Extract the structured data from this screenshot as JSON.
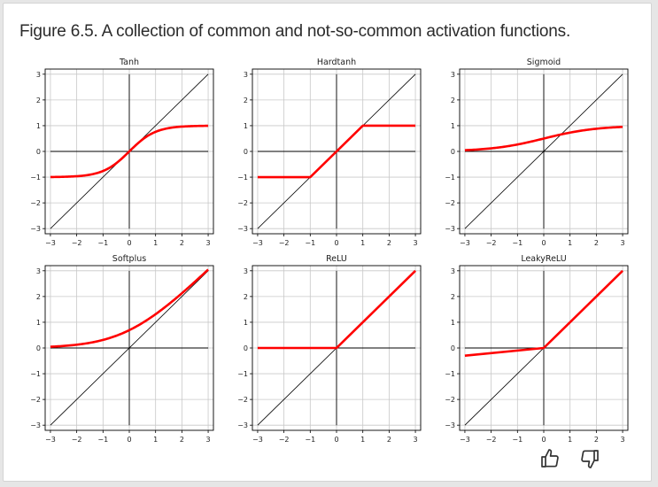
{
  "caption": "Figure 6.5. A collection of common and not-so-common activation functions.",
  "chart_data": [
    {
      "type": "line",
      "title": "Tanh",
      "function": "tanh",
      "xlim": [
        -3.2,
        3.2
      ],
      "ylim": [
        -3.2,
        3.2
      ],
      "xticks": [
        -3,
        -2,
        -1,
        0,
        1,
        2,
        3
      ],
      "yticks": [
        -3,
        -2,
        -1,
        0,
        1,
        2,
        3
      ],
      "xtick_labels": [
        "−3",
        "−2",
        "−1",
        "0",
        "1",
        "2",
        "3"
      ],
      "ytick_labels": [
        "−3",
        "−2",
        "−1",
        "0",
        "1",
        "2",
        "3"
      ],
      "series": [
        {
          "name": "identity",
          "color": "#000000",
          "x": [
            -3,
            3
          ],
          "y": [
            -3,
            3
          ]
        },
        {
          "name": "Tanh",
          "color": "#ff0000",
          "x": [
            -3,
            3
          ],
          "samples": 121
        }
      ]
    },
    {
      "type": "line",
      "title": "Hardtanh",
      "function": "hardtanh",
      "xlim": [
        -3.2,
        3.2
      ],
      "ylim": [
        -3.2,
        3.2
      ],
      "xticks": [
        -3,
        -2,
        -1,
        0,
        1,
        2,
        3
      ],
      "yticks": [
        -3,
        -2,
        -1,
        0,
        1,
        2,
        3
      ],
      "xtick_labels": [
        "−3",
        "−2",
        "−1",
        "0",
        "1",
        "2",
        "3"
      ],
      "ytick_labels": [
        "−3",
        "−2",
        "−1",
        "0",
        "1",
        "2",
        "3"
      ],
      "series": [
        {
          "name": "identity",
          "color": "#000000",
          "x": [
            -3,
            3
          ],
          "y": [
            -3,
            3
          ]
        },
        {
          "name": "Hardtanh",
          "color": "#ff0000",
          "x": [
            -3,
            -1,
            1,
            3
          ],
          "y": [
            -1,
            -1,
            1,
            1
          ]
        }
      ]
    },
    {
      "type": "line",
      "title": "Sigmoid",
      "function": "sigmoid",
      "xlim": [
        -3.2,
        3.2
      ],
      "ylim": [
        -3.2,
        3.2
      ],
      "xticks": [
        -3,
        -2,
        -1,
        0,
        1,
        2,
        3
      ],
      "yticks": [
        -3,
        -2,
        -1,
        0,
        1,
        2,
        3
      ],
      "xtick_labels": [
        "−3",
        "−2",
        "−1",
        "0",
        "1",
        "2",
        "3"
      ],
      "ytick_labels": [
        "−3",
        "−2",
        "−1",
        "0",
        "1",
        "2",
        "3"
      ],
      "series": [
        {
          "name": "identity",
          "color": "#000000",
          "x": [
            -3,
            3
          ],
          "y": [
            -3,
            3
          ]
        },
        {
          "name": "Sigmoid",
          "color": "#ff0000",
          "x": [
            -3,
            3
          ],
          "samples": 121
        }
      ]
    },
    {
      "type": "line",
      "title": "Softplus",
      "function": "softplus",
      "xlim": [
        -3.2,
        3.2
      ],
      "ylim": [
        -3.2,
        3.2
      ],
      "xticks": [
        -3,
        -2,
        -1,
        0,
        1,
        2,
        3
      ],
      "yticks": [
        -3,
        -2,
        -1,
        0,
        1,
        2,
        3
      ],
      "xtick_labels": [
        "−3",
        "−2",
        "−1",
        "0",
        "1",
        "2",
        "3"
      ],
      "ytick_labels": [
        "−3",
        "−2",
        "−1",
        "0",
        "1",
        "2",
        "3"
      ],
      "series": [
        {
          "name": "identity",
          "color": "#000000",
          "x": [
            -3,
            3
          ],
          "y": [
            -3,
            3
          ]
        },
        {
          "name": "Softplus",
          "color": "#ff0000",
          "x": [
            -3,
            3
          ],
          "samples": 121
        }
      ]
    },
    {
      "type": "line",
      "title": "ReLU",
      "function": "relu",
      "xlim": [
        -3.2,
        3.2
      ],
      "ylim": [
        -3.2,
        3.2
      ],
      "xticks": [
        -3,
        -2,
        -1,
        0,
        1,
        2,
        3
      ],
      "yticks": [
        -3,
        -2,
        -1,
        0,
        1,
        2,
        3
      ],
      "xtick_labels": [
        "−3",
        "−2",
        "−1",
        "0",
        "1",
        "2",
        "3"
      ],
      "ytick_labels": [
        "−3",
        "−2",
        "−1",
        "0",
        "1",
        "2",
        "3"
      ],
      "series": [
        {
          "name": "identity",
          "color": "#000000",
          "x": [
            -3,
            3
          ],
          "y": [
            -3,
            3
          ]
        },
        {
          "name": "ReLU",
          "color": "#ff0000",
          "x": [
            -3,
            0,
            3
          ],
          "y": [
            0,
            0,
            3
          ]
        }
      ]
    },
    {
      "type": "line",
      "title": "LeakyReLU",
      "function": "leaky_relu",
      "xlim": [
        -3.2,
        3.2
      ],
      "ylim": [
        -3.2,
        3.2
      ],
      "xticks": [
        -3,
        -2,
        -1,
        0,
        1,
        2,
        3
      ],
      "yticks": [
        -3,
        -2,
        -1,
        0,
        1,
        2,
        3
      ],
      "xtick_labels": [
        "−3",
        "−2",
        "−1",
        "0",
        "1",
        "2",
        "3"
      ],
      "ytick_labels": [
        "−3",
        "−2",
        "−1",
        "0",
        "1",
        "2",
        "3"
      ],
      "series": [
        {
          "name": "identity",
          "color": "#000000",
          "x": [
            -3,
            3
          ],
          "y": [
            -3,
            3
          ]
        },
        {
          "name": "LeakyReLU",
          "color": "#ff0000",
          "x": [
            -3,
            0,
            3
          ],
          "y": [
            -0.3,
            0,
            3
          ]
        }
      ]
    }
  ],
  "feedback": {
    "thumbs_up_icon": "thumbs-up-icon",
    "thumbs_down_icon": "thumbs-down-icon"
  }
}
